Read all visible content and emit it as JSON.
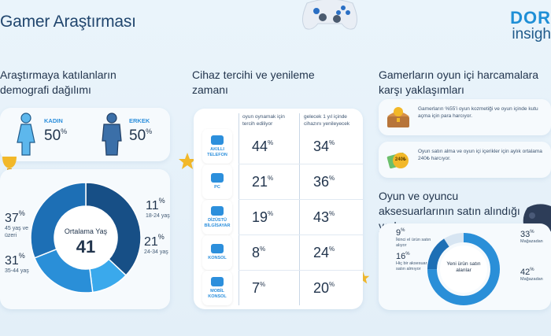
{
  "header": {
    "title": "Gamer Araştırması",
    "brand_line1": "DOR",
    "brand_line2": "insigh"
  },
  "demographics": {
    "heading": "Araştırmaya katılanların demografi dağılımı",
    "female": {
      "label": "KADIN",
      "value": "50",
      "unit": "%"
    },
    "male": {
      "label": "ERKEK",
      "value": "50",
      "unit": "%"
    },
    "center_label": "Ortalama Yaş",
    "center_value": "41",
    "segments": [
      {
        "value": "11",
        "unit": "%",
        "label": "18-24 yaş",
        "fraction": 0.11,
        "color": "#3aa9ec"
      },
      {
        "value": "21",
        "unit": "%",
        "label": "24-34 yaş",
        "fraction": 0.21,
        "color": "#2a8fd8"
      },
      {
        "value": "31",
        "unit": "%",
        "label": "35-44 yaş",
        "fraction": 0.31,
        "color": "#1d6fb5"
      },
      {
        "value": "37",
        "unit": "%",
        "label": "45 yaş ve üzeri",
        "fraction": 0.37,
        "color": "#174f86"
      }
    ],
    "donut_order": [
      3,
      0,
      1,
      2
    ]
  },
  "devices": {
    "heading": "Cihaz tercihi ve yenileme zamanı",
    "col1_header": "oyun oynamak için tercih ediliyor",
    "col2_header": "gelecek 1 yıl içinde cihazını yenileyecek",
    "rows": [
      {
        "name": "AKILLI TELEFON",
        "pref": "44",
        "renew": "34"
      },
      {
        "name": "PC",
        "pref": "21",
        "renew": "36"
      },
      {
        "name": "DİZÜSTÜ BİLGİSAYAR",
        "pref": "19",
        "renew": "43"
      },
      {
        "name": "KONSOL",
        "pref": "8",
        "renew": "24"
      },
      {
        "name": "MOBİL KONSOL",
        "pref": "7",
        "renew": "20"
      }
    ],
    "unit": "%"
  },
  "spending": {
    "heading": "Gamerların oyun içi harcamalara karşı yaklaşımları",
    "items": [
      {
        "text": "Gamerların %55'i oyun kozmetiği ve oyun içinde kutu açma için para harcıyor."
      },
      {
        "text": "Oyun satın alma ve oyun içi içerikler için aylık ortalama 240₺ harcıyor.",
        "badge": "240₺"
      }
    ]
  },
  "places": {
    "heading": "Oyun ve oyuncu aksesuarlarının satın alındığı yerler",
    "center_label": "Yeni ürün satın alanlar",
    "items": [
      {
        "value": "9",
        "unit": "%",
        "label": "İkinci el ürün satın alıyor"
      },
      {
        "value": "16",
        "unit": "%",
        "label": "Hiç bir aksesuar satın almıyor"
      },
      {
        "value": "33",
        "unit": "%",
        "label": "Mağazadan"
      },
      {
        "value": "42",
        "unit": "%",
        "label": "Mağazadan"
      }
    ]
  }
}
